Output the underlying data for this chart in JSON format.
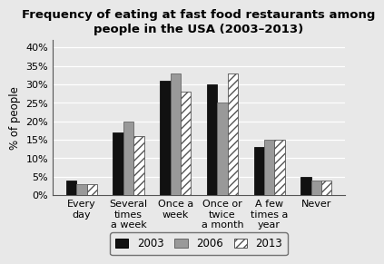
{
  "title": "Frequency of eating at fast food restaurants among\npeople in the USA (2003–2013)",
  "ylabel": "% of people",
  "categories": [
    "Every\nday",
    "Several\ntimes\na week",
    "Once a\nweek",
    "Once or\ntwice\na month",
    "A few\ntimes a\nyear",
    "Never"
  ],
  "series": {
    "2003": [
      4,
      17,
      31,
      30,
      13,
      5
    ],
    "2006": [
      3,
      20,
      33,
      25,
      15,
      4
    ],
    "2013": [
      3,
      16,
      28,
      33,
      15,
      4
    ]
  },
  "bar_colors": {
    "2003": "#111111",
    "2006": "#999999",
    "2013": "#ffffff"
  },
  "bar_hatches": {
    "2003": "",
    "2006": "",
    "2013": "////"
  },
  "bar_edgecolors": {
    "2003": "#111111",
    "2006": "#666666",
    "2013": "#555555"
  },
  "ylim": [
    0,
    42
  ],
  "yticks": [
    0,
    5,
    10,
    15,
    20,
    25,
    30,
    35,
    40
  ],
  "ytick_labels": [
    "0%",
    "5%",
    "10%",
    "15%",
    "20%",
    "25%",
    "30%",
    "35%",
    "40%"
  ],
  "legend_labels": [
    "2003",
    "2006",
    "2013"
  ],
  "bar_width": 0.22,
  "background_color": "#e8e8e8",
  "plot_bg_color": "#e8e8e8",
  "title_fontsize": 9.5,
  "axis_fontsize": 8.5,
  "tick_fontsize": 8,
  "legend_fontsize": 8.5
}
